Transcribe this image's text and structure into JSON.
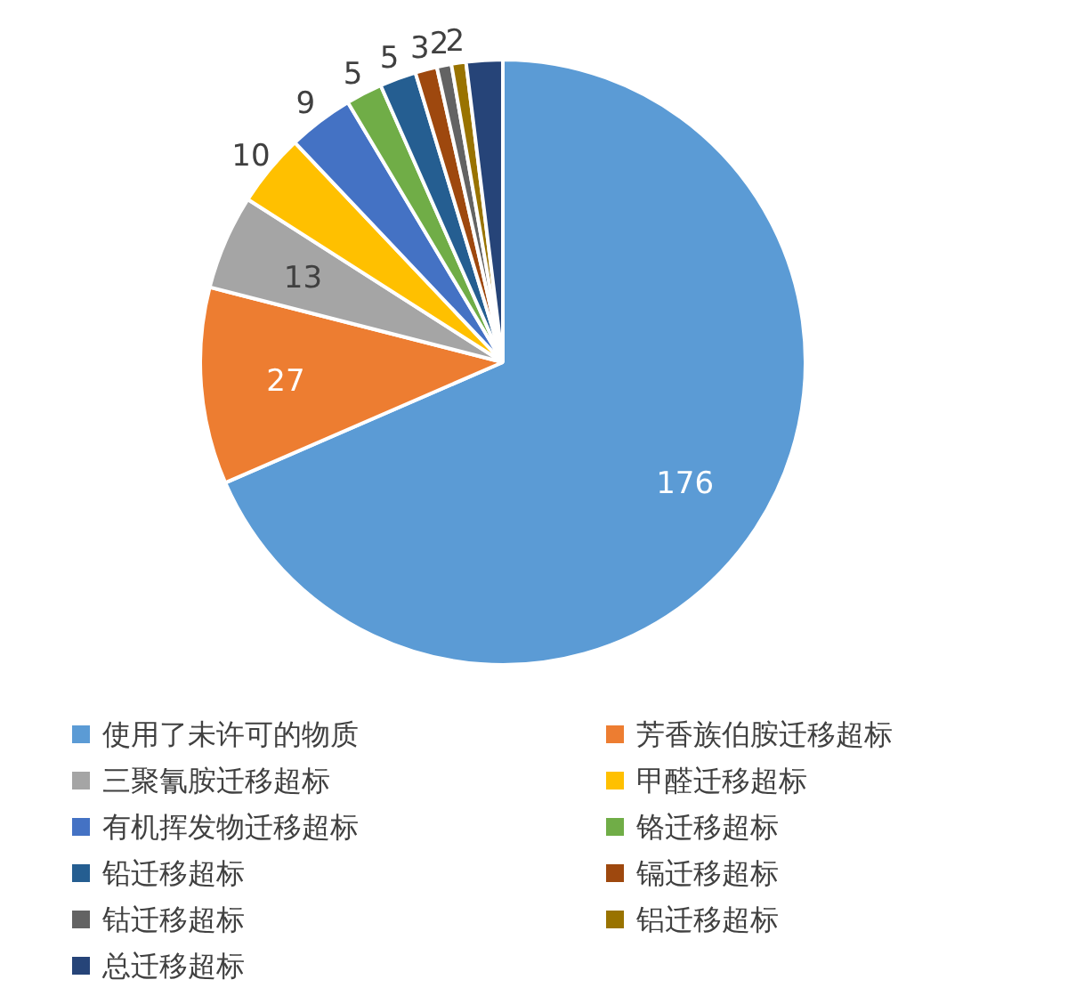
{
  "chart_data": {
    "type": "pie",
    "legend": "bottom",
    "data_labels": true,
    "categories": [
      "使用了未许可的物质",
      "芳香族伯胺迁移超标",
      "三聚氰胺迁移超标",
      "甲醛迁移超标",
      "有机挥发物迁移超标",
      "铬迁移超标",
      "铅迁移超标",
      "镉迁移超标",
      "钴迁移超标",
      "铝迁移超标",
      "总迁移超标"
    ],
    "values": [
      176,
      27,
      13,
      10,
      9,
      5,
      5,
      3,
      2,
      2,
      5
    ],
    "value_labels": [
      "176",
      "27",
      "13",
      "10",
      "9",
      "5",
      "5",
      "3",
      "2",
      "2",
      null
    ],
    "colors": [
      "#5b9bd5",
      "#ed7d31",
      "#a5a5a5",
      "#ffc000",
      "#4472c4",
      "#70ad47",
      "#255e91",
      "#9e480e",
      "#636363",
      "#997300",
      "#264478"
    ]
  }
}
